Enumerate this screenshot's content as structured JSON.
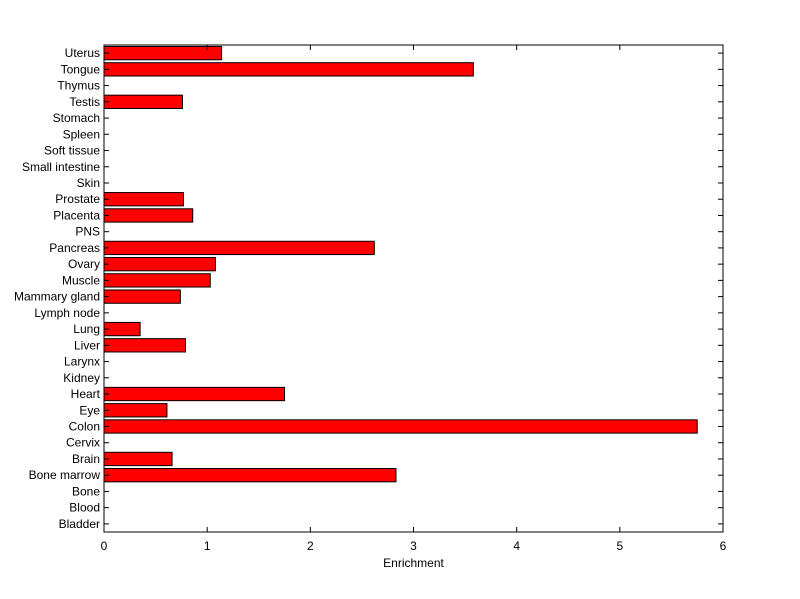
{
  "chart_data": {
    "type": "bar",
    "orientation": "horizontal",
    "categories": [
      "Uterus",
      "Tongue",
      "Thymus",
      "Testis",
      "Stomach",
      "Spleen",
      "Soft tissue",
      "Small intestine",
      "Skin",
      "Prostate",
      "Placenta",
      "PNS",
      "Pancreas",
      "Ovary",
      "Muscle",
      "Mammary gland",
      "Lymph node",
      "Lung",
      "Liver",
      "Larynx",
      "Kidney",
      "Heart",
      "Eye",
      "Colon",
      "Cervix",
      "Brain",
      "Bone marrow",
      "Bone",
      "Blood",
      "Bladder"
    ],
    "values": [
      1.14,
      3.58,
      0,
      0.76,
      0,
      0,
      0,
      0,
      0,
      0.77,
      0.86,
      0,
      2.62,
      1.08,
      1.03,
      0.74,
      0,
      0.35,
      0.79,
      0,
      0,
      1.75,
      0.61,
      5.75,
      0,
      0.66,
      2.83,
      0,
      0,
      0
    ],
    "xlabel": "Enrichment",
    "ylabel": "",
    "title": "",
    "xlim": [
      0,
      6
    ],
    "xticks": [
      "0",
      "1",
      "2",
      "3",
      "4",
      "5",
      "6"
    ],
    "grid": false,
    "bar_color": "#ff0000"
  }
}
